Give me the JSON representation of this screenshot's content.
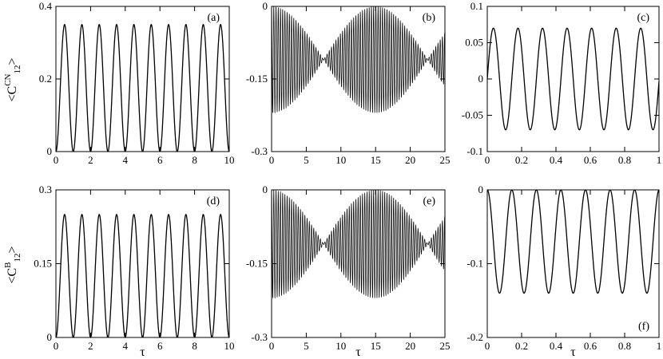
{
  "figure": {
    "row_labels": [
      {
        "prefix": "<C",
        "superscript": "CN",
        "subscript": "12",
        "suffix": ">"
      },
      {
        "prefix": "<C",
        "superscript": "B",
        "subscript": "12",
        "suffix": ">"
      }
    ],
    "xlabel": "τ"
  },
  "chart_data": [
    {
      "type": "line",
      "panel": "(a)",
      "xlim": [
        0,
        10
      ],
      "ylim": [
        0,
        0.4
      ],
      "xticks": [
        0,
        2,
        4,
        6,
        8,
        10
      ],
      "xtick_labels": [
        "0",
        "2",
        "4",
        "6",
        "8",
        "10"
      ],
      "yticks": [
        0,
        0.2,
        0.4
      ],
      "ytick_labels": [
        "0",
        "0.2",
        "0.4"
      ],
      "grid": false,
      "series": [
        {
          "model": "cosine",
          "baseline": 0.175,
          "amplitude": 0.175,
          "period": 1.0,
          "phase": 0.5,
          "peak_values": [
            0.345,
            0.345,
            0.345,
            0.345,
            0.345,
            0.345,
            0.345,
            0.345,
            0.345,
            0.345
          ],
          "min_value": 0.0
        }
      ]
    },
    {
      "type": "line",
      "panel": "(b)",
      "xlim": [
        0,
        25
      ],
      "ylim": [
        -0.3,
        0
      ],
      "xticks": [
        0,
        5,
        10,
        15,
        20,
        25
      ],
      "xtick_labels": [
        "0",
        "5",
        "10",
        "15",
        "20",
        "25"
      ],
      "yticks": [
        -0.3,
        -0.15,
        0
      ],
      "ytick_labels": [
        "-0.3",
        "-0.15",
        "0"
      ],
      "grid": false,
      "series": [
        {
          "model": "beat",
          "center": -0.11,
          "max_envelope": 0.11,
          "envelope_period": 15.0,
          "carrier_period": 0.32,
          "envelope_min_at": [
            7.5,
            22.5
          ],
          "envelope_max_at": [
            0,
            15
          ]
        }
      ]
    },
    {
      "type": "line",
      "panel": "(c)",
      "xlim": [
        0,
        1
      ],
      "ylim": [
        -0.1,
        0.1
      ],
      "xticks": [
        0,
        0.2,
        0.4,
        0.6,
        0.8,
        1
      ],
      "xtick_labels": [
        "0",
        "0.2",
        "0.4",
        "0.6",
        "0.8",
        "1"
      ],
      "yticks": [
        -0.1,
        -0.05,
        0,
        0.05,
        0.1
      ],
      "ytick_labels": [
        "-0.1",
        "-0.05",
        "0",
        "0.05",
        "0.1"
      ],
      "grid": false,
      "series": [
        {
          "model": "sine",
          "baseline": 0,
          "amplitude": 0.07,
          "period": 0.143,
          "phase": 0
        }
      ]
    },
    {
      "type": "line",
      "panel": "(d)",
      "xlim": [
        0,
        10
      ],
      "ylim": [
        0,
        0.3
      ],
      "xticks": [
        0,
        2,
        4,
        6,
        8,
        10
      ],
      "xtick_labels": [
        "0",
        "2",
        "4",
        "6",
        "8",
        "10"
      ],
      "yticks": [
        0,
        0.15,
        0.3
      ],
      "ytick_labels": [
        "0",
        "0.15",
        "0.3"
      ],
      "grid": false,
      "series": [
        {
          "model": "cosine",
          "baseline": 0.125,
          "amplitude": 0.125,
          "period": 1.0,
          "phase": 0.5,
          "min_value": 0.0,
          "max_value": 0.25
        }
      ]
    },
    {
      "type": "line",
      "panel": "(e)",
      "xlim": [
        0,
        25
      ],
      "ylim": [
        -0.3,
        0
      ],
      "xticks": [
        0,
        5,
        10,
        15,
        20,
        25
      ],
      "xtick_labels": [
        "0",
        "5",
        "10",
        "15",
        "20",
        "25"
      ],
      "yticks": [
        -0.3,
        -0.15,
        0
      ],
      "ytick_labels": [
        "-0.3",
        "-0.15",
        "0"
      ],
      "grid": false,
      "series": [
        {
          "model": "beat",
          "center": -0.11,
          "max_envelope": 0.11,
          "envelope_period": 15.0,
          "carrier_period": 0.32,
          "envelope_min_at": [
            7.5,
            22.5
          ],
          "envelope_max_at": [
            0,
            15
          ]
        }
      ]
    },
    {
      "type": "line",
      "panel": "(f)",
      "xlim": [
        0,
        1
      ],
      "ylim": [
        -0.2,
        0
      ],
      "xticks": [
        0,
        0.2,
        0.4,
        0.6,
        0.8,
        1
      ],
      "xtick_labels": [
        "0",
        "0.2",
        "0.4",
        "0.6",
        "0.8",
        "1"
      ],
      "yticks": [
        -0.2,
        -0.1,
        0
      ],
      "ytick_labels": [
        "-0.2",
        "-0.1",
        "0"
      ],
      "grid": false,
      "series": [
        {
          "model": "cosine",
          "baseline": -0.07,
          "amplitude": 0.07,
          "period": 0.143,
          "phase": 0,
          "min_value": -0.14,
          "max_value": 0.0
        }
      ]
    }
  ]
}
